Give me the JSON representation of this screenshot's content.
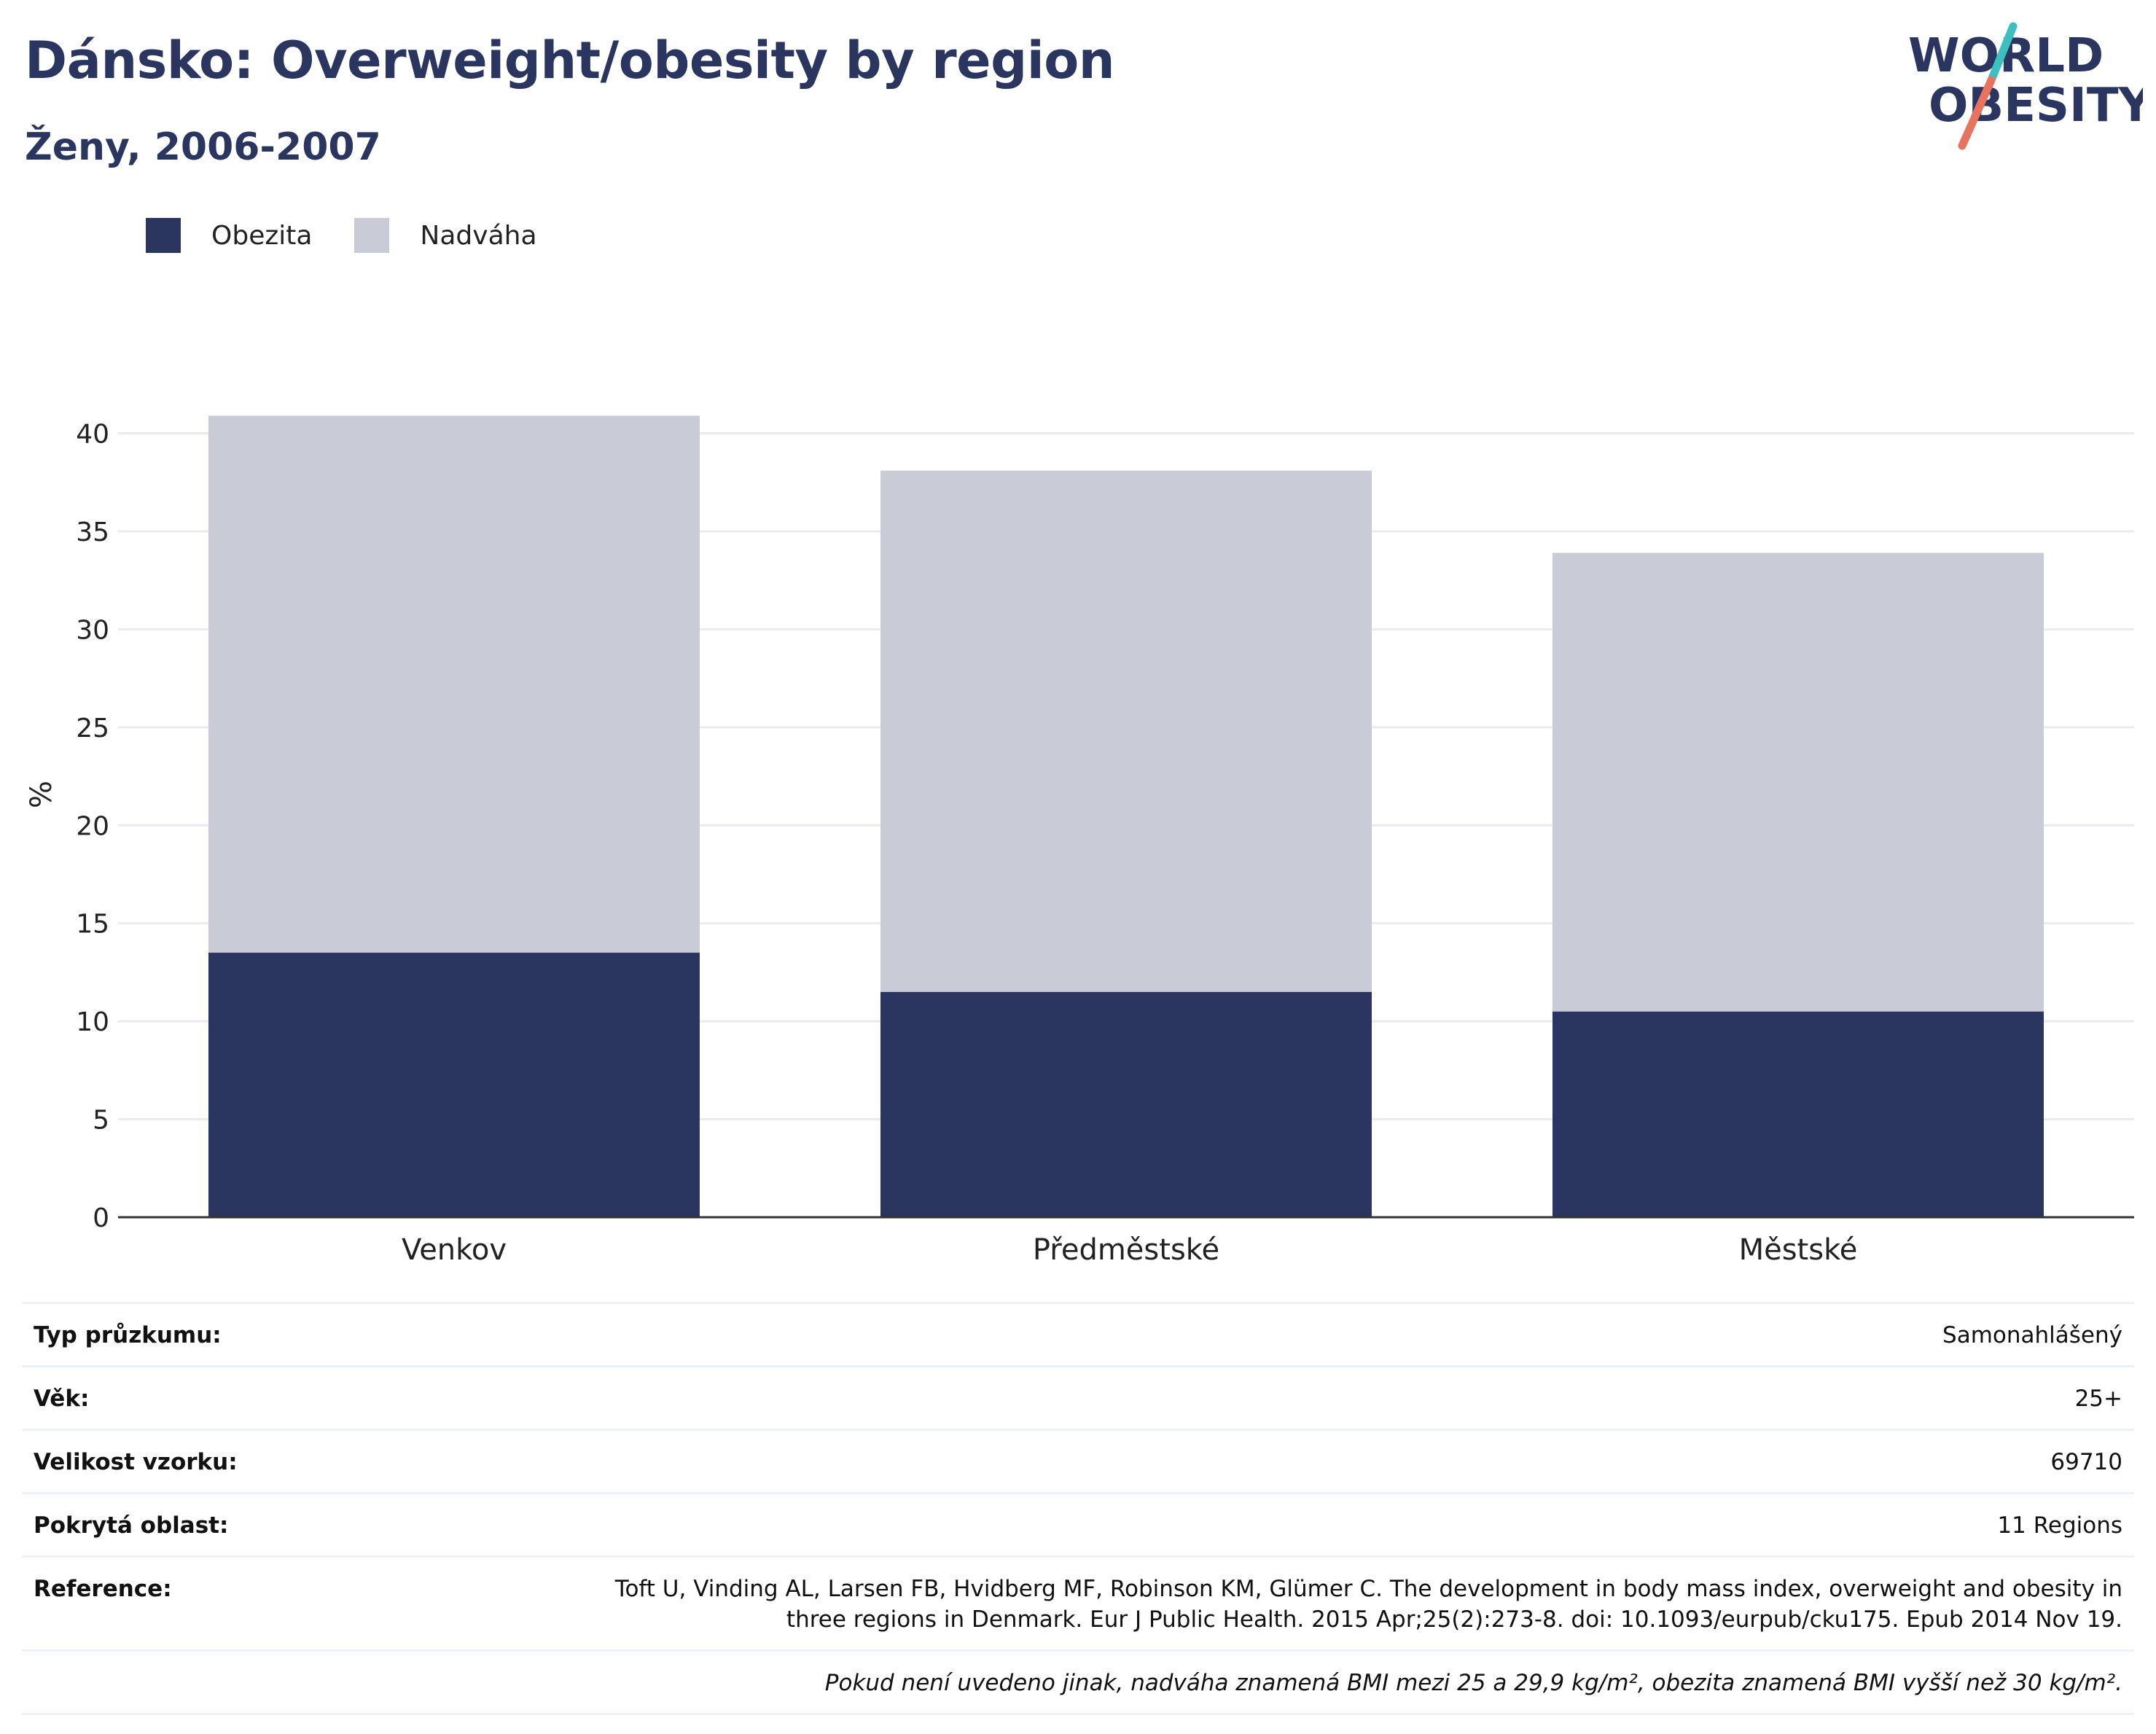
{
  "header": {
    "title": "Dánsko: Overweight/obesity by region",
    "subtitle": "Ženy, 2006-2007"
  },
  "logo": {
    "line1": "WORLD",
    "line2": "OBESITY",
    "accent_teal": "#3bbfbf",
    "accent_coral": "#e8735f"
  },
  "legend": {
    "items": [
      {
        "label": "Obezita",
        "color": "#2a365f"
      },
      {
        "label": "Nadváha",
        "color": "#c9ccd7"
      }
    ]
  },
  "chart_data": {
    "type": "bar",
    "stacked": true,
    "categories": [
      "Venkov",
      "Předměstské",
      "Městské"
    ],
    "series": [
      {
        "name": "Obezita",
        "color": "#2a365f",
        "values": [
          13.5,
          11.5,
          10.5
        ]
      },
      {
        "name": "Nadváha",
        "color": "#c9ccd7",
        "values": [
          27.4,
          26.6,
          23.4
        ]
      }
    ],
    "totals": [
      40.9,
      38.1,
      33.9
    ],
    "title": "Dánsko: Overweight/obesity by region",
    "subtitle": "Ženy, 2006-2007",
    "xlabel": "",
    "ylabel": "%",
    "yticks": [
      0,
      5,
      10,
      15,
      20,
      25,
      30,
      35,
      40
    ],
    "ylim": [
      0,
      42.4
    ],
    "grid": true,
    "legend_position": "top-left"
  },
  "info": {
    "rows": [
      {
        "key": "Typ průzkumu:",
        "value": "Samonahlášený"
      },
      {
        "key": "Věk:",
        "value": "25+"
      },
      {
        "key": "Velikost vzorku:",
        "value": "69710"
      },
      {
        "key": "Pokrytá oblast:",
        "value": "11 Regions"
      },
      {
        "key": "Reference:",
        "value": "Toft U, Vinding AL, Larsen FB, Hvidberg MF, Robinson KM, Glümer C. The development in body mass index, overweight and obesity in three regions in Denmark. Eur J Public Health. 2015 Apr;25(2):273-8. doi: 10.1093/eurpub/cku175. Epub 2014 Nov 19."
      }
    ],
    "footnote": "Pokud není uvedeno jinak, nadváha znamená BMI mezi 25 a 29,9 kg/m², obezita znamená BMI vyšší než 30 kg/m²."
  }
}
